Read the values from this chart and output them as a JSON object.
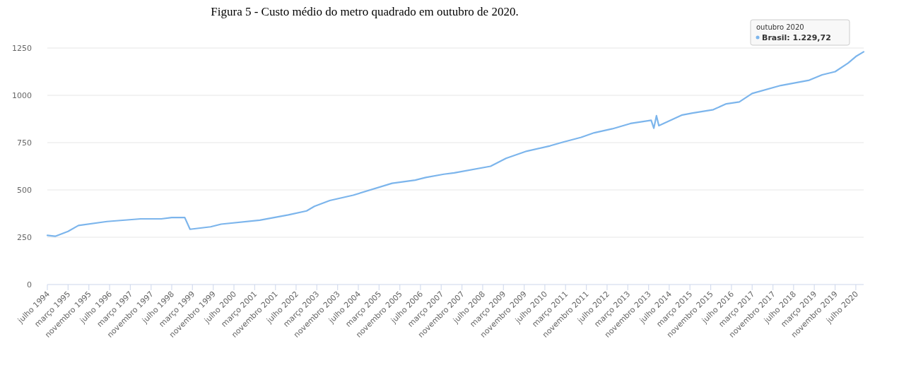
{
  "chart_data": {
    "type": "line",
    "title": "Figura 5 - Custo médio do metro quadrado em outubro de 2020.",
    "x": [
      "1994-07",
      "1994-10",
      "1995-03",
      "1995-07",
      "1996-06",
      "1997-07",
      "1998-03",
      "1998-07",
      "1998-12",
      "1999-02",
      "1999-10",
      "2000-02",
      "2001-05",
      "2002-04",
      "2002-11",
      "2003-02",
      "2003-08",
      "2004-05",
      "2005-08",
      "2006-05",
      "2006-09",
      "2007-04",
      "2007-08",
      "2008-10",
      "2009-04",
      "2009-12",
      "2010-09",
      "2011-02",
      "2011-09",
      "2012-02",
      "2012-09",
      "2013-04",
      "2013-12",
      "2014-01",
      "2014-02",
      "2014-03",
      "2014-12",
      "2015-04",
      "2015-12",
      "2016-05",
      "2016-10",
      "2017-03",
      "2018-02",
      "2019-01",
      "2019-06",
      "2019-11",
      "2020-04",
      "2020-07",
      "2020-10"
    ],
    "series": [
      {
        "color": "#7cb5ec",
        "values": [
          260,
          255,
          281,
          312,
          333,
          347,
          347,
          354,
          354,
          292,
          305,
          319,
          340,
          368,
          389,
          413,
          444,
          472,
          535,
          552,
          566,
          583,
          590,
          625,
          667,
          705,
          733,
          753,
          778,
          802,
          823,
          851,
          868,
          826,
          892,
          840,
          896,
          906,
          924,
          955,
          965,
          1010,
          1052,
          1080,
          1108,
          1125,
          1170,
          1205,
          1230
        ]
      }
    ],
    "annotations": [
      "outubro 2020",
      "Brasil: 1.229,72"
    ],
    "ylim": [
      0,
      1250
    ],
    "yticks": [
      0,
      250,
      500,
      750,
      1000,
      1250
    ],
    "xlim": [
      "1994-07",
      "2020-10"
    ],
    "xticks": [
      {
        "value": "1994-07",
        "label": "julho 1994"
      },
      {
        "value": "1995-03",
        "label": "março 1995"
      },
      {
        "value": "1995-11",
        "label": "novembro 1995"
      },
      {
        "value": "1996-07",
        "label": "julho 1996"
      },
      {
        "value": "1997-03",
        "label": "março 1997"
      },
      {
        "value": "1997-11",
        "label": "novembro 1997"
      },
      {
        "value": "1998-07",
        "label": "julho 1998"
      },
      {
        "value": "1999-03",
        "label": "março 1999"
      },
      {
        "value": "1999-11",
        "label": "novembro 1999"
      },
      {
        "value": "2000-07",
        "label": "julho 2000"
      },
      {
        "value": "2001-03",
        "label": "março 2001"
      },
      {
        "value": "2001-11",
        "label": "novembro 2001"
      },
      {
        "value": "2002-07",
        "label": "julho 2002"
      },
      {
        "value": "2003-03",
        "label": "março 2003"
      },
      {
        "value": "2003-11",
        "label": "novembro 2003"
      },
      {
        "value": "2004-07",
        "label": "julho 2004"
      },
      {
        "value": "2005-03",
        "label": "março 2005"
      },
      {
        "value": "2005-11",
        "label": "novembro 2005"
      },
      {
        "value": "2006-07",
        "label": "julho 2006"
      },
      {
        "value": "2007-03",
        "label": "março 2007"
      },
      {
        "value": "2007-11",
        "label": "novembro 2007"
      },
      {
        "value": "2008-07",
        "label": "julho 2008"
      },
      {
        "value": "2009-03",
        "label": "março 2009"
      },
      {
        "value": "2009-11",
        "label": "novembro 2009"
      },
      {
        "value": "2010-07",
        "label": "julho 2010"
      },
      {
        "value": "2011-03",
        "label": "março 2011"
      },
      {
        "value": "2011-11",
        "label": "novembro 2011"
      },
      {
        "value": "2012-07",
        "label": "julho 2012"
      },
      {
        "value": "2013-03",
        "label": "março 2013"
      },
      {
        "value": "2013-11",
        "label": "novembro 2013"
      },
      {
        "value": "2014-07",
        "label": "julho 2014"
      },
      {
        "value": "2015-03",
        "label": "março 2015"
      },
      {
        "value": "2015-11",
        "label": "novembro 2015"
      },
      {
        "value": "2016-07",
        "label": "julho 2016"
      },
      {
        "value": "2017-03",
        "label": "março 2017"
      },
      {
        "value": "2017-11",
        "label": "novembro 2017"
      },
      {
        "value": "2018-07",
        "label": "julho 2018"
      },
      {
        "value": "2019-03",
        "label": "março 2019"
      },
      {
        "value": "2019-11",
        "label": "novembro 2019"
      },
      {
        "value": "2020-07",
        "label": "julho 2020"
      }
    ],
    "grid": "y"
  }
}
